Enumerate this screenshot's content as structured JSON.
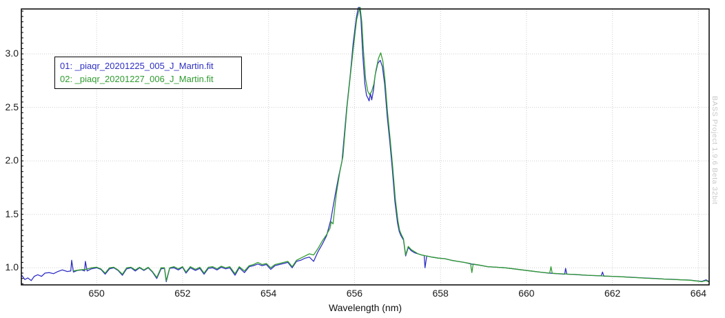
{
  "app": {
    "watermark": "BASS Project 1.9.6 Beta 32bit"
  },
  "chart_data": {
    "type": "line",
    "title": "",
    "xlabel": "Wavelength (nm)",
    "ylabel": "",
    "xlim": [
      648.25,
      664.25
    ],
    "ylim": [
      0.84,
      3.42
    ],
    "grid": "dotted",
    "legend_position": "top-left",
    "x_ticks": [
      {
        "v": 650,
        "label": "650"
      },
      {
        "v": 652,
        "label": "652"
      },
      {
        "v": 654,
        "label": "654"
      },
      {
        "v": 656,
        "label": "656"
      },
      {
        "v": 658,
        "label": "658"
      },
      {
        "v": 660,
        "label": "660"
      },
      {
        "v": 662,
        "label": "662"
      },
      {
        "v": 664,
        "label": "664"
      }
    ],
    "y_ticks": [
      {
        "v": 1.0,
        "label": "1.0"
      },
      {
        "v": 1.5,
        "label": "1.5"
      },
      {
        "v": 2.0,
        "label": "2.0"
      },
      {
        "v": 2.5,
        "label": "2.5"
      },
      {
        "v": 3.0,
        "label": "3.0"
      }
    ],
    "colors": {
      "background": "#ffffff",
      "axis": "#000000",
      "grid": "#cdcdcd",
      "tick_text": "#1a1a1a",
      "watermark": "#c8c8c8",
      "series1": "#2f2fc4",
      "series2": "#2f9b2f"
    },
    "series": [
      {
        "label": "01: _piaqr_20201225_005_J_Martin.fit",
        "color": "#2f2fc4",
        "points": [
          [
            648.26,
            0.93
          ],
          [
            648.33,
            0.89
          ],
          [
            648.4,
            0.905
          ],
          [
            648.48,
            0.88
          ],
          [
            648.55,
            0.92
          ],
          [
            648.63,
            0.935
          ],
          [
            648.72,
            0.92
          ],
          [
            648.8,
            0.95
          ],
          [
            648.9,
            0.955
          ],
          [
            649.0,
            0.945
          ],
          [
            649.1,
            0.965
          ],
          [
            649.2,
            0.98
          ],
          [
            649.32,
            0.965
          ],
          [
            649.4,
            0.97
          ],
          [
            649.42,
            1.07
          ],
          [
            649.46,
            0.96
          ],
          [
            649.55,
            0.975
          ],
          [
            649.65,
            0.98
          ],
          [
            649.72,
            0.97
          ],
          [
            649.74,
            1.06
          ],
          [
            649.78,
            0.97
          ],
          [
            649.88,
            0.99
          ],
          [
            650.0,
            1.0
          ],
          [
            650.1,
            0.985
          ],
          [
            650.2,
            0.94
          ],
          [
            650.3,
            0.99
          ],
          [
            650.4,
            1.0
          ],
          [
            650.5,
            0.975
          ],
          [
            650.6,
            0.93
          ],
          [
            650.7,
            0.99
          ],
          [
            650.8,
            1.0
          ],
          [
            650.9,
            0.97
          ],
          [
            651.0,
            1.0
          ],
          [
            651.1,
            0.975
          ],
          [
            651.2,
            1.0
          ],
          [
            651.3,
            0.96
          ],
          [
            651.4,
            0.9
          ],
          [
            651.5,
            0.99
          ],
          [
            651.58,
            0.995
          ],
          [
            651.62,
            0.87
          ],
          [
            651.7,
            0.995
          ],
          [
            651.8,
            1.0
          ],
          [
            651.9,
            0.98
          ],
          [
            652.0,
            1.005
          ],
          [
            652.08,
            0.95
          ],
          [
            652.18,
            1.0
          ],
          [
            652.3,
            0.975
          ],
          [
            652.4,
            0.995
          ],
          [
            652.5,
            0.94
          ],
          [
            652.6,
            0.995
          ],
          [
            652.7,
            1.0
          ],
          [
            652.8,
            0.98
          ],
          [
            652.9,
            1.005
          ],
          [
            653.0,
            0.99
          ],
          [
            653.1,
            1.0
          ],
          [
            653.22,
            0.93
          ],
          [
            653.32,
            1.0
          ],
          [
            653.44,
            0.955
          ],
          [
            653.55,
            1.01
          ],
          [
            653.65,
            1.02
          ],
          [
            653.75,
            1.035
          ],
          [
            653.85,
            1.02
          ],
          [
            653.95,
            1.03
          ],
          [
            654.05,
            0.985
          ],
          [
            654.15,
            1.02
          ],
          [
            654.25,
            1.03
          ],
          [
            654.35,
            1.04
          ],
          [
            654.45,
            1.05
          ],
          [
            654.55,
            1.0
          ],
          [
            654.65,
            1.06
          ],
          [
            654.75,
            1.07
          ],
          [
            654.85,
            1.09
          ],
          [
            654.95,
            1.1
          ],
          [
            655.05,
            1.06
          ],
          [
            655.15,
            1.15
          ],
          [
            655.25,
            1.22
          ],
          [
            655.35,
            1.3
          ],
          [
            655.45,
            1.45
          ],
          [
            655.55,
            1.68
          ],
          [
            655.63,
            1.85
          ],
          [
            655.71,
            2.0
          ],
          [
            655.82,
            2.5
          ],
          [
            655.9,
            2.8
          ],
          [
            655.97,
            3.1
          ],
          [
            656.04,
            3.33
          ],
          [
            656.08,
            3.42
          ],
          [
            656.11,
            3.46
          ],
          [
            656.15,
            3.32
          ],
          [
            656.19,
            3.0
          ],
          [
            656.24,
            2.72
          ],
          [
            656.28,
            2.61
          ],
          [
            656.31,
            2.59
          ],
          [
            656.34,
            2.56
          ],
          [
            656.37,
            2.63
          ],
          [
            656.4,
            2.57
          ],
          [
            656.44,
            2.66
          ],
          [
            656.48,
            2.8
          ],
          [
            656.54,
            2.91
          ],
          [
            656.6,
            2.94
          ],
          [
            656.65,
            2.88
          ],
          [
            656.7,
            2.72
          ],
          [
            656.76,
            2.42
          ],
          [
            656.82,
            2.18
          ],
          [
            656.88,
            1.92
          ],
          [
            656.94,
            1.62
          ],
          [
            657.0,
            1.42
          ],
          [
            657.04,
            1.34
          ],
          [
            657.08,
            1.3
          ],
          [
            657.14,
            1.26
          ],
          [
            657.19,
            1.11
          ],
          [
            657.25,
            1.19
          ],
          [
            657.32,
            1.16
          ],
          [
            657.4,
            1.14
          ],
          [
            657.48,
            1.13
          ],
          [
            657.56,
            1.12
          ],
          [
            657.62,
            1.115
          ],
          [
            657.64,
            1.0
          ],
          [
            657.68,
            1.11
          ],
          [
            657.8,
            1.1
          ],
          [
            657.95,
            1.09
          ],
          [
            658.1,
            1.085
          ],
          [
            658.25,
            1.07
          ],
          [
            658.4,
            1.06
          ],
          [
            658.55,
            1.05
          ],
          [
            658.72,
            1.035
          ],
          [
            658.9,
            1.025
          ],
          [
            659.1,
            1.01
          ],
          [
            659.3,
            1.005
          ],
          [
            659.5,
            1.0
          ],
          [
            659.7,
            0.99
          ],
          [
            659.9,
            0.98
          ],
          [
            660.1,
            0.97
          ],
          [
            660.3,
            0.96
          ],
          [
            660.5,
            0.95
          ],
          [
            660.7,
            0.945
          ],
          [
            660.89,
            0.94
          ],
          [
            660.91,
            0.995
          ],
          [
            660.94,
            0.94
          ],
          [
            661.1,
            0.938
          ],
          [
            661.3,
            0.932
          ],
          [
            661.5,
            0.928
          ],
          [
            661.74,
            0.925
          ],
          [
            661.77,
            0.96
          ],
          [
            661.8,
            0.922
          ],
          [
            662.0,
            0.92
          ],
          [
            662.2,
            0.917
          ],
          [
            662.4,
            0.912
          ],
          [
            662.6,
            0.908
          ],
          [
            662.8,
            0.903
          ],
          [
            663.0,
            0.9
          ],
          [
            663.2,
            0.895
          ],
          [
            663.4,
            0.892
          ],
          [
            663.6,
            0.888
          ],
          [
            663.8,
            0.885
          ],
          [
            663.95,
            0.878
          ],
          [
            664.08,
            0.873
          ],
          [
            664.18,
            0.887
          ],
          [
            664.24,
            0.872
          ]
        ]
      },
      {
        "label": "02: _piaqr_20201227_006_J_Martin.fit",
        "color": "#2f9b2f",
        "points": [
          [
            649.45,
            0.97
          ],
          [
            649.6,
            0.98
          ],
          [
            649.75,
            0.985
          ],
          [
            649.88,
            1.0
          ],
          [
            650.0,
            1.005
          ],
          [
            650.1,
            0.99
          ],
          [
            650.2,
            0.95
          ],
          [
            650.3,
            1.0
          ],
          [
            650.4,
            1.005
          ],
          [
            650.5,
            0.98
          ],
          [
            650.6,
            0.94
          ],
          [
            650.7,
            1.0
          ],
          [
            650.8,
            1.005
          ],
          [
            650.9,
            0.98
          ],
          [
            651.0,
            1.005
          ],
          [
            651.1,
            0.98
          ],
          [
            651.2,
            1.005
          ],
          [
            651.3,
            0.965
          ],
          [
            651.4,
            0.91
          ],
          [
            651.5,
            1.0
          ],
          [
            651.58,
            1.0
          ],
          [
            651.62,
            0.88
          ],
          [
            651.7,
            1.0
          ],
          [
            651.8,
            1.01
          ],
          [
            651.9,
            0.99
          ],
          [
            652.0,
            1.01
          ],
          [
            652.08,
            0.96
          ],
          [
            652.18,
            1.01
          ],
          [
            652.3,
            0.985
          ],
          [
            652.4,
            1.005
          ],
          [
            652.5,
            0.95
          ],
          [
            652.6,
            1.005
          ],
          [
            652.7,
            1.01
          ],
          [
            652.8,
            0.99
          ],
          [
            652.9,
            1.015
          ],
          [
            653.0,
            1.0
          ],
          [
            653.1,
            1.01
          ],
          [
            653.22,
            0.945
          ],
          [
            653.32,
            1.01
          ],
          [
            653.44,
            0.97
          ],
          [
            653.55,
            1.02
          ],
          [
            653.65,
            1.03
          ],
          [
            653.75,
            1.05
          ],
          [
            653.85,
            1.03
          ],
          [
            653.95,
            1.04
          ],
          [
            654.05,
            1.0
          ],
          [
            654.15,
            1.03
          ],
          [
            654.25,
            1.04
          ],
          [
            654.35,
            1.05
          ],
          [
            654.45,
            1.06
          ],
          [
            654.55,
            1.01
          ],
          [
            654.65,
            1.07
          ],
          [
            654.75,
            1.09
          ],
          [
            654.85,
            1.11
          ],
          [
            654.95,
            1.13
          ],
          [
            655.05,
            1.12
          ],
          [
            655.15,
            1.18
          ],
          [
            655.25,
            1.25
          ],
          [
            655.35,
            1.31
          ],
          [
            655.43,
            1.37
          ],
          [
            655.46,
            1.43
          ],
          [
            655.5,
            1.41
          ],
          [
            655.58,
            1.7
          ],
          [
            655.66,
            1.9
          ],
          [
            655.73,
            2.04
          ],
          [
            655.83,
            2.52
          ],
          [
            655.91,
            2.82
          ],
          [
            655.98,
            3.08
          ],
          [
            656.05,
            3.32
          ],
          [
            656.1,
            3.4
          ],
          [
            656.13,
            3.44
          ],
          [
            656.17,
            3.3
          ],
          [
            656.21,
            3.02
          ],
          [
            656.26,
            2.76
          ],
          [
            656.31,
            2.65
          ],
          [
            656.35,
            2.62
          ],
          [
            656.4,
            2.65
          ],
          [
            656.45,
            2.72
          ],
          [
            656.5,
            2.85
          ],
          [
            656.56,
            2.96
          ],
          [
            656.61,
            3.01
          ],
          [
            656.66,
            2.93
          ],
          [
            656.71,
            2.75
          ],
          [
            656.77,
            2.45
          ],
          [
            656.83,
            2.2
          ],
          [
            656.89,
            1.94
          ],
          [
            656.95,
            1.64
          ],
          [
            657.01,
            1.44
          ],
          [
            657.05,
            1.35
          ],
          [
            657.09,
            1.31
          ],
          [
            657.14,
            1.27
          ],
          [
            657.19,
            1.12
          ],
          [
            657.25,
            1.2
          ],
          [
            657.32,
            1.17
          ],
          [
            657.4,
            1.15
          ],
          [
            657.48,
            1.13
          ],
          [
            657.56,
            1.12
          ],
          [
            657.68,
            1.11
          ],
          [
            657.8,
            1.1
          ],
          [
            657.95,
            1.09
          ],
          [
            658.1,
            1.085
          ],
          [
            658.25,
            1.07
          ],
          [
            658.4,
            1.06
          ],
          [
            658.55,
            1.05
          ],
          [
            658.7,
            1.04
          ],
          [
            658.73,
            0.955
          ],
          [
            658.76,
            1.035
          ],
          [
            658.9,
            1.025
          ],
          [
            659.1,
            1.01
          ],
          [
            659.3,
            1.005
          ],
          [
            659.5,
            1.0
          ],
          [
            659.7,
            0.99
          ],
          [
            659.9,
            0.98
          ],
          [
            660.1,
            0.97
          ],
          [
            660.3,
            0.96
          ],
          [
            660.54,
            0.95
          ],
          [
            660.57,
            1.01
          ],
          [
            660.6,
            0.948
          ],
          [
            660.8,
            0.944
          ],
          [
            661.0,
            0.94
          ],
          [
            661.2,
            0.936
          ],
          [
            661.4,
            0.93
          ],
          [
            661.6,
            0.927
          ],
          [
            661.8,
            0.923
          ],
          [
            662.0,
            0.92
          ],
          [
            662.2,
            0.916
          ],
          [
            662.4,
            0.911
          ],
          [
            662.6,
            0.907
          ],
          [
            662.8,
            0.902
          ],
          [
            663.0,
            0.899
          ],
          [
            663.2,
            0.894
          ],
          [
            663.4,
            0.891
          ],
          [
            663.6,
            0.887
          ],
          [
            663.8,
            0.884
          ],
          [
            663.95,
            0.877
          ],
          [
            664.08,
            0.87
          ],
          [
            664.18,
            0.88
          ],
          [
            664.24,
            0.868
          ]
        ]
      }
    ]
  }
}
